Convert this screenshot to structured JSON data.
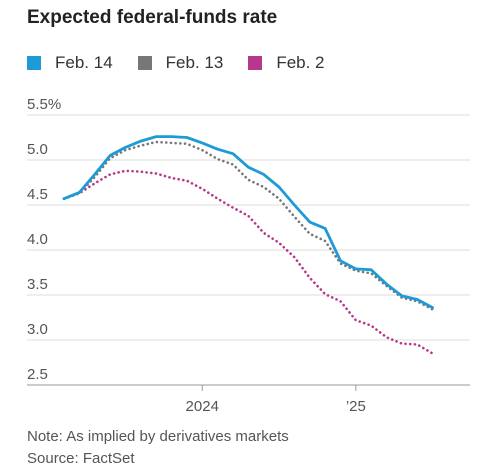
{
  "chart_data": {
    "type": "line",
    "title": "Expected federal-funds rate",
    "xlabel": "",
    "ylabel": "",
    "x_tick_labels": [
      "2024",
      "’25"
    ],
    "y_tick_labels": [
      "5.5%",
      "5.0",
      "4.5",
      "4.0",
      "3.5",
      "3.0",
      "2.5"
    ],
    "y_ticks": [
      5.5,
      5.0,
      4.5,
      4.0,
      3.5,
      3.0,
      2.5
    ],
    "ylim": [
      2.5,
      5.5
    ],
    "grid": true,
    "legend_position": "top",
    "x_index": [
      0,
      1,
      2,
      3,
      4,
      5,
      6,
      7,
      8,
      9,
      10,
      11,
      12,
      13,
      14,
      15,
      16,
      17,
      18,
      19
    ],
    "x_tick_index": [
      9,
      19
    ],
    "series": [
      {
        "name": "Feb. 14",
        "color": "#1e9ad6",
        "style": "solid",
        "values": [
          4.57,
          4.64,
          4.84,
          5.05,
          5.14,
          5.21,
          5.26,
          5.26,
          5.25,
          5.19,
          5.12,
          5.07,
          4.92,
          4.84,
          4.7,
          4.5,
          4.31,
          4.24,
          3.88,
          3.79
        ]
      },
      {
        "name": "Feb. 13",
        "color": "#777777",
        "style": "dotted",
        "values": [
          4.57,
          4.63,
          4.81,
          5.02,
          5.11,
          5.16,
          5.2,
          5.19,
          5.18,
          5.11,
          5.01,
          4.95,
          4.78,
          4.7,
          4.57,
          4.37,
          4.18,
          4.1,
          3.85,
          3.77
        ]
      },
      {
        "name": "Feb. 2",
        "color": "#b7378a",
        "style": "dotted",
        "values": [
          4.57,
          4.63,
          4.74,
          4.84,
          4.88,
          4.87,
          4.85,
          4.8,
          4.77,
          4.68,
          4.57,
          4.47,
          4.38,
          4.19,
          4.08,
          3.92,
          3.69,
          3.51,
          3.43,
          3.22
        ]
      }
    ],
    "series_tail": {
      "x_index": [
        19,
        20,
        21,
        22,
        23,
        24
      ],
      "values": [
        [
          3.79,
          3.78,
          3.62,
          3.49,
          3.45,
          3.36
        ],
        [
          3.77,
          3.74,
          3.6,
          3.47,
          3.43,
          3.34
        ],
        [
          3.22,
          3.16,
          3.03,
          2.96,
          2.95,
          2.85
        ]
      ]
    },
    "note": "Note: As implied by derivatives markets",
    "source": "Source: FactSet"
  }
}
